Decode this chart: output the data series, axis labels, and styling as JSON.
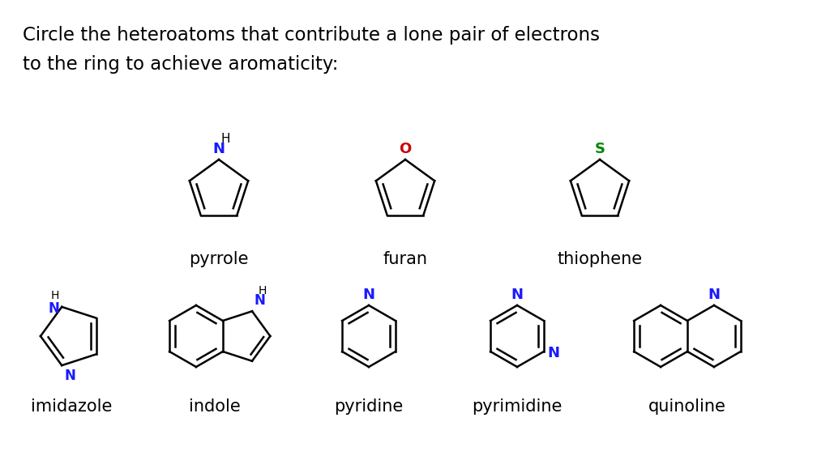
{
  "title_line1": "Circle the heteroatoms that contribute a lone pair of electrons",
  "title_line2": "to the ring to achieve aromaticity:",
  "lw": 1.8,
  "molecules": [
    {
      "name": "pyrrole",
      "row": 1,
      "col": 1
    },
    {
      "name": "furan",
      "row": 1,
      "col": 2
    },
    {
      "name": "thiophene",
      "row": 1,
      "col": 3
    },
    {
      "name": "imidazole",
      "row": 2,
      "col": 0
    },
    {
      "name": "indole",
      "row": 2,
      "col": 1
    },
    {
      "name": "pyridine",
      "row": 2,
      "col": 2
    },
    {
      "name": "pyrimidine",
      "row": 2,
      "col": 3
    },
    {
      "name": "quinoline",
      "row": 2,
      "col": 4
    }
  ]
}
